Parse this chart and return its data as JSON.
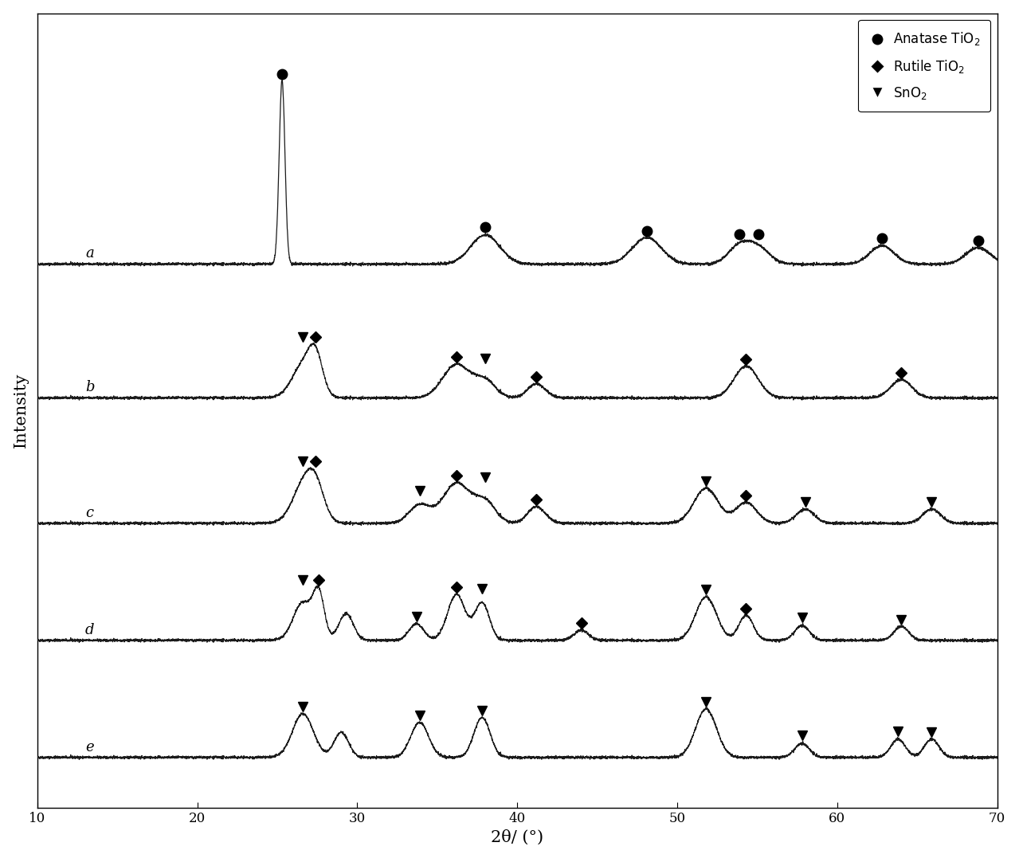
{
  "xlabel": "2θ/ (°)",
  "ylabel": "Intensity",
  "xlim": [
    10,
    70
  ],
  "ylim": [
    0,
    9.5
  ],
  "background_color": "#ffffff",
  "text_color": "#000000",
  "curve_color": "#1a1a1a",
  "label_fontsize": 13,
  "tick_fontsize": 12,
  "legend_fontsize": 12,
  "curve_labels": [
    "a",
    "b",
    "c",
    "d",
    "e"
  ],
  "curve_offsets": [
    6.5,
    4.9,
    3.4,
    2.0,
    0.6
  ],
  "peaks": {
    "a": {
      "positions": [
        25.3,
        38.0,
        48.1,
        53.9,
        55.1,
        62.8,
        68.8
      ],
      "heights": [
        2.2,
        0.35,
        0.32,
        0.22,
        0.18,
        0.22,
        0.2
      ],
      "widths": [
        0.18,
        0.9,
        0.9,
        0.7,
        0.7,
        0.75,
        0.75
      ]
    },
    "b": {
      "positions": [
        26.6,
        27.4,
        36.2,
        38.0,
        41.2,
        54.3,
        64.0
      ],
      "heights": [
        0.38,
        0.42,
        0.4,
        0.2,
        0.17,
        0.38,
        0.22
      ],
      "widths": [
        0.7,
        0.45,
        0.85,
        0.65,
        0.55,
        0.75,
        0.65
      ]
    },
    "c": {
      "positions": [
        26.6,
        27.4,
        33.9,
        36.2,
        38.0,
        41.2,
        51.8,
        54.3,
        58.0,
        65.9
      ],
      "heights": [
        0.42,
        0.38,
        0.22,
        0.48,
        0.25,
        0.2,
        0.42,
        0.25,
        0.17,
        0.17
      ],
      "widths": [
        0.7,
        0.55,
        0.65,
        0.85,
        0.65,
        0.55,
        0.75,
        0.65,
        0.55,
        0.55
      ]
    },
    "d": {
      "positions": [
        26.6,
        27.6,
        29.3,
        33.7,
        36.2,
        37.8,
        44.0,
        51.8,
        54.3,
        57.8,
        64.0
      ],
      "heights": [
        0.45,
        0.52,
        0.32,
        0.2,
        0.55,
        0.45,
        0.12,
        0.52,
        0.3,
        0.18,
        0.17
      ],
      "widths": [
        0.6,
        0.35,
        0.45,
        0.45,
        0.55,
        0.45,
        0.45,
        0.65,
        0.45,
        0.45,
        0.45
      ]
    },
    "e": {
      "positions": [
        26.6,
        29.0,
        33.9,
        37.8,
        51.8,
        57.8,
        63.8,
        65.9
      ],
      "heights": [
        0.52,
        0.3,
        0.42,
        0.48,
        0.58,
        0.17,
        0.22,
        0.22
      ],
      "widths": [
        0.65,
        0.45,
        0.55,
        0.5,
        0.65,
        0.45,
        0.45,
        0.45
      ]
    }
  },
  "markers": {
    "a": {
      "anatase": [
        25.3,
        38.0,
        48.1,
        53.9,
        55.1,
        62.8,
        68.8
      ],
      "rutile": [],
      "sno2": []
    },
    "b": {
      "anatase": [],
      "rutile": [
        27.4,
        36.2,
        41.2,
        54.3,
        64.0
      ],
      "sno2": [
        26.6,
        38.0
      ]
    },
    "c": {
      "anatase": [],
      "rutile": [
        27.4,
        36.2,
        41.2,
        54.3
      ],
      "sno2": [
        26.6,
        33.9,
        38.0,
        51.8,
        58.0,
        65.9
      ]
    },
    "d": {
      "anatase": [],
      "rutile": [
        27.6,
        36.2,
        44.0,
        54.3
      ],
      "sno2": [
        26.6,
        33.7,
        37.8,
        51.8,
        57.8,
        64.0
      ]
    },
    "e": {
      "anatase": [],
      "rutile": [],
      "sno2": [
        26.6,
        33.9,
        37.8,
        51.8,
        57.8,
        63.8,
        65.9
      ]
    }
  },
  "marker_above": 0.07
}
